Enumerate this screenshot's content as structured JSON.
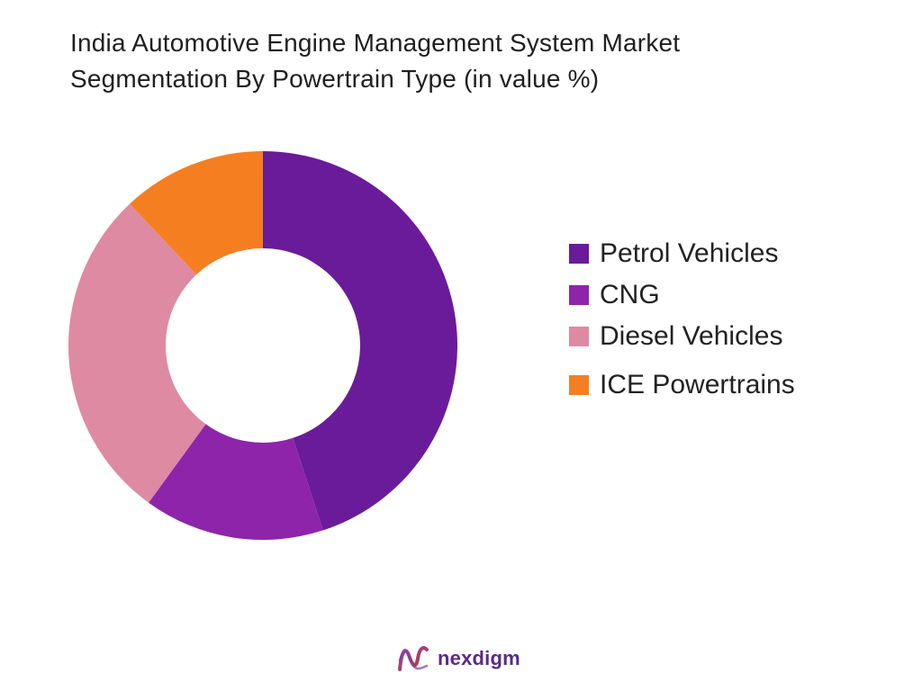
{
  "chart_data": {
    "type": "pie",
    "title_lines": [
      "India Automotive Engine Management System Market",
      "Segmentation By Powertrain Type (in value %)"
    ],
    "categories": [
      "Petrol Vehicles",
      "CNG",
      "Diesel Vehicles",
      "ICE Powertrains"
    ],
    "values": [
      45,
      15,
      28,
      12
    ],
    "colors": [
      "#6a1b9a",
      "#8e24aa",
      "#de8aa3",
      "#f57f20"
    ],
    "donut": true,
    "start_angle_deg": 0,
    "direction": "clockwise",
    "legend_position": "right"
  },
  "brand": {
    "name": "nexdigm"
  }
}
